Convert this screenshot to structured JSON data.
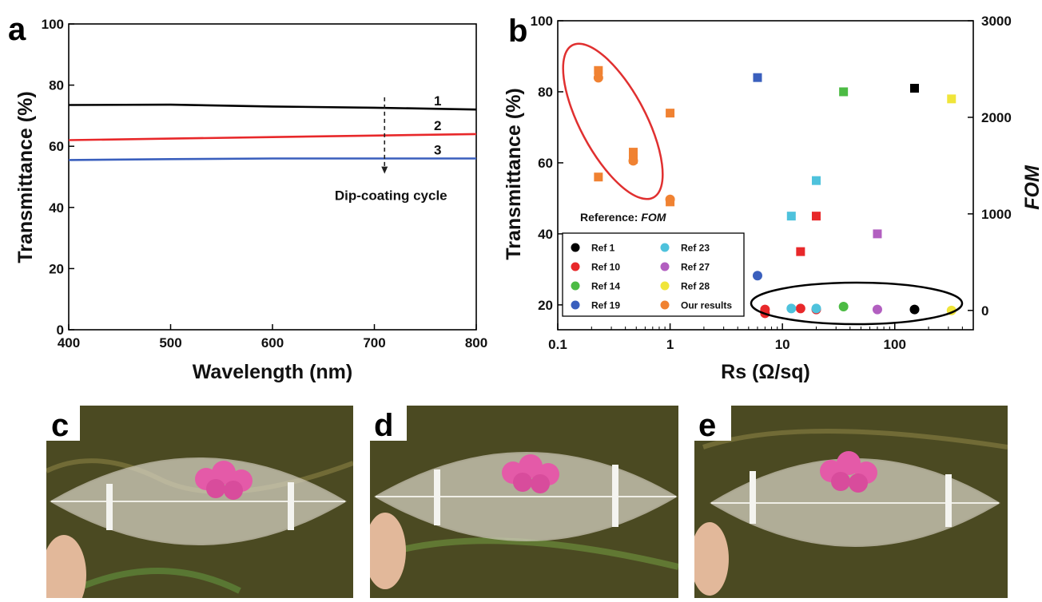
{
  "panel_letters": [
    "a",
    "b",
    "c",
    "d",
    "e"
  ],
  "colors": {
    "curve1": "#000000",
    "curve2": "#e8282a",
    "curve3": "#3a5fbd",
    "ref1": "#000000",
    "ref10": "#e8282a",
    "ref14": "#4cbb44",
    "ref19": "#3a5fbd",
    "ref23": "#4ec2dc",
    "ref27": "#b25fc0",
    "ref28": "#f0e53a",
    "our": "#f08232",
    "highlight_red": "#e03030",
    "highlight_black": "#000000",
    "leaf_fill": "#d7d3c4",
    "flower": "#e45aa8",
    "grass": "#4b4a22"
  },
  "chart_data": [
    {
      "type": "line",
      "title": "",
      "xlabel": "Wavelength (nm)",
      "ylabel": "Transmittance (%)",
      "xlim": [
        400,
        800
      ],
      "ylim": [
        0,
        100
      ],
      "xticks": [
        400,
        500,
        600,
        700,
        800
      ],
      "yticks": [
        0,
        20,
        40,
        60,
        80,
        100
      ],
      "series": [
        {
          "name": "1",
          "x": [
            400,
            500,
            600,
            700,
            800
          ],
          "y": [
            73.5,
            73.6,
            73.0,
            72.6,
            72.0
          ]
        },
        {
          "name": "2",
          "x": [
            400,
            500,
            600,
            700,
            800
          ],
          "y": [
            62.0,
            62.5,
            63.0,
            63.5,
            64.0
          ]
        },
        {
          "name": "3",
          "x": [
            400,
            500,
            600,
            700,
            800
          ],
          "y": [
            55.5,
            55.8,
            56.0,
            56.0,
            56.0
          ]
        }
      ],
      "annotation": {
        "text": "Dip-coating cycle",
        "x": 710,
        "y_from": 76,
        "y_to": 51
      }
    },
    {
      "type": "scatter",
      "title": "",
      "xlabel": "Rs (Ω/sq)",
      "ylabel": "Transmittance (%)",
      "y2label": "FOM",
      "xscale": "log",
      "xlim": [
        0.1,
        500
      ],
      "ylim": [
        13,
        100
      ],
      "y2lim": [
        -200,
        3000
      ],
      "xtick_labels": [
        "0.1",
        "1",
        "10",
        "100"
      ],
      "yticks": [
        20,
        40,
        60,
        80,
        100
      ],
      "y2ticks": [
        0,
        1000,
        2000,
        3000
      ],
      "reference_label_prefix": "Reference: ",
      "reference_label_emph": "FOM",
      "legend": {
        "placement": "lower-left",
        "entries": [
          {
            "name": "Ref 1",
            "color": "ref1"
          },
          {
            "name": "Ref 23",
            "color": "ref23"
          },
          {
            "name": "Ref 10",
            "color": "ref10"
          },
          {
            "name": "Ref 27",
            "color": "ref27"
          },
          {
            "name": "Ref 14",
            "color": "ref14"
          },
          {
            "name": "Ref 28",
            "color": "ref28"
          },
          {
            "name": "Ref 19",
            "color": "ref19"
          },
          {
            "name": "Our results",
            "color": "our"
          }
        ]
      },
      "transmittance_squares": [
        {
          "series": "Ref 1",
          "color": "ref1",
          "rs": 150,
          "t": 81
        },
        {
          "series": "Ref 10",
          "color": "ref10",
          "rs": 14.5,
          "t": 35
        },
        {
          "series": "Ref 10",
          "color": "ref10",
          "rs": 20,
          "t": 45
        },
        {
          "series": "Ref 14",
          "color": "ref14",
          "rs": 35,
          "t": 80
        },
        {
          "series": "Ref 19",
          "color": "ref19",
          "rs": 6,
          "t": 84
        },
        {
          "series": "Ref 23",
          "color": "ref23",
          "rs": 12,
          "t": 45
        },
        {
          "series": "Ref 23",
          "color": "ref23",
          "rs": 20,
          "t": 55
        },
        {
          "series": "Ref 27",
          "color": "ref27",
          "rs": 70,
          "t": 40
        },
        {
          "series": "Ref 28",
          "color": "ref28",
          "rs": 320,
          "t": 78
        },
        {
          "series": "Our results",
          "color": "our",
          "rs": 0.23,
          "t": 56
        },
        {
          "series": "Our results",
          "color": "our",
          "rs": 0.23,
          "t": 86
        },
        {
          "series": "Our results",
          "color": "our",
          "rs": 0.47,
          "t": 63
        },
        {
          "series": "Our results",
          "color": "our",
          "rs": 0.47,
          "t": 61
        },
        {
          "series": "Our results",
          "color": "our",
          "rs": 1.0,
          "t": 74
        },
        {
          "series": "Our results",
          "color": "our",
          "rs": 1.0,
          "t": 49
        }
      ],
      "fom_circles": [
        {
          "series": "Ref 1",
          "color": "ref1",
          "rs": 150,
          "fom": 10
        },
        {
          "series": "Ref 10",
          "color": "ref10",
          "rs": 7,
          "fom": -30
        },
        {
          "series": "Ref 10",
          "color": "ref10",
          "rs": 7,
          "fom": 10
        },
        {
          "series": "Ref 10",
          "color": "ref10",
          "rs": 14.5,
          "fom": 20
        },
        {
          "series": "Ref 10",
          "color": "ref10",
          "rs": 20,
          "fom": 10
        },
        {
          "series": "Ref 14",
          "color": "ref14",
          "rs": 35,
          "fom": 40
        },
        {
          "series": "Ref 19",
          "color": "ref19",
          "rs": 6,
          "fom": 360
        },
        {
          "series": "Ref 23",
          "color": "ref23",
          "rs": 12,
          "fom": 20
        },
        {
          "series": "Ref 23",
          "color": "ref23",
          "rs": 20,
          "fom": 20
        },
        {
          "series": "Ref 27",
          "color": "ref27",
          "rs": 70,
          "fom": 10
        },
        {
          "series": "Ref 28",
          "color": "ref28",
          "rs": 320,
          "fom": 0
        },
        {
          "series": "Our results",
          "color": "our",
          "rs": 0.23,
          "fom": 2410
        },
        {
          "series": "Our results",
          "color": "our",
          "rs": 0.47,
          "fom": 1550
        },
        {
          "series": "Our results",
          "color": "our",
          "rs": 1.0,
          "fom": 1150
        }
      ]
    }
  ]
}
